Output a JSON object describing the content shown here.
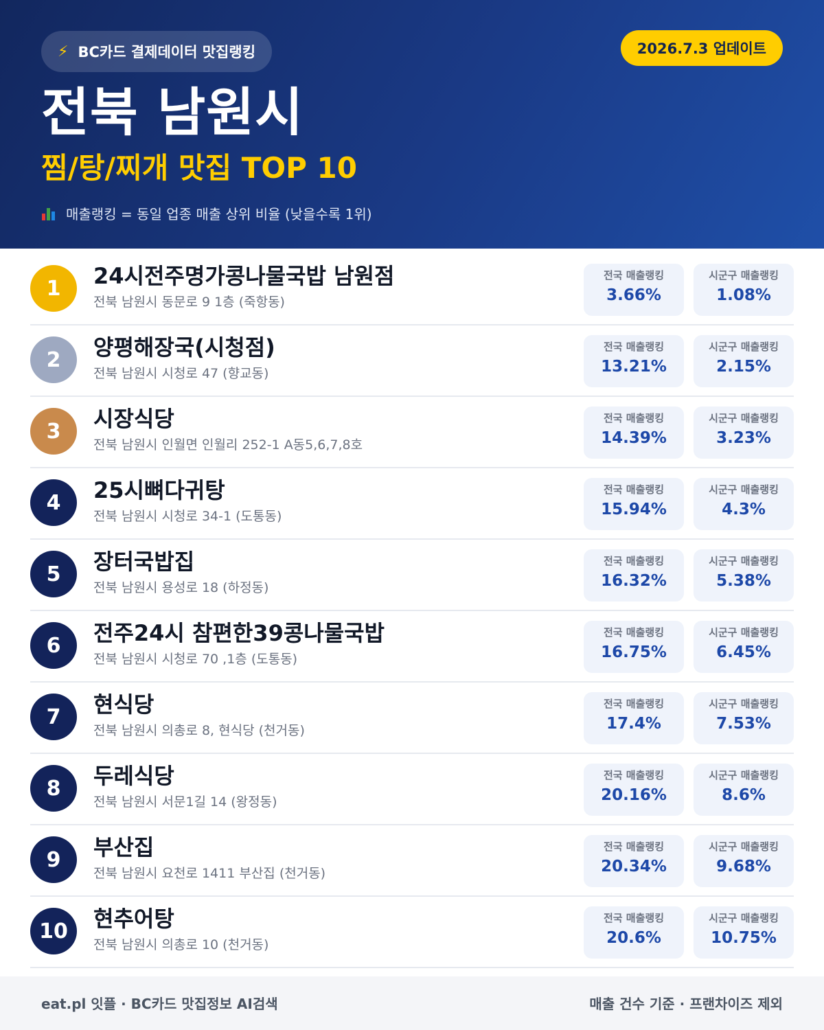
{
  "header": {
    "pill_label": "BC카드 결제데이터 맛집랭킹",
    "date_badge": "2026.7.3 업데이트",
    "title": "전북 남원시",
    "subtitle": "찜/탕/찌개 맛집 TOP 10",
    "note": "매출랭킹 = 동일 업종 매출 상위 비율 (낮을수록 1위)"
  },
  "colors": {
    "header_dark": "#12275e",
    "header_light": "#1f4fa8",
    "accent_yellow": "#ffcd00",
    "gold": "#f2b600",
    "silver": "#9ea9c1",
    "bronze": "#c98a4c",
    "navy": "#13235a",
    "value_blue": "#1d48a8"
  },
  "list": {
    "national_label": "전국 매출랭킹",
    "local_label": "시군구 매출랭킹",
    "items": [
      {
        "rank": "1",
        "name": "24시전주명가콩나물국밥 남원점",
        "address": "전북 남원시 동문로 9 1층 (죽항동)",
        "national": "3.66%",
        "local": "1.08%"
      },
      {
        "rank": "2",
        "name": "양평해장국(시청점)",
        "address": "전북 남원시 시청로 47 (향교동)",
        "national": "13.21%",
        "local": "2.15%"
      },
      {
        "rank": "3",
        "name": "시장식당",
        "address": "전북 남원시 인월면 인월리 252-1 A동5,6,7,8호",
        "national": "14.39%",
        "local": "3.23%"
      },
      {
        "rank": "4",
        "name": "25시뼈다귀탕",
        "address": "전북 남원시 시청로 34-1 (도통동)",
        "national": "15.94%",
        "local": "4.3%"
      },
      {
        "rank": "5",
        "name": "장터국밥집",
        "address": "전북 남원시 용성로 18 (하정동)",
        "national": "16.32%",
        "local": "5.38%"
      },
      {
        "rank": "6",
        "name": "전주24시 참편한39콩나물국밥",
        "address": "전북 남원시 시청로 70 ,1층 (도통동)",
        "national": "16.75%",
        "local": "6.45%"
      },
      {
        "rank": "7",
        "name": "현식당",
        "address": "전북 남원시 의총로 8, 현식당 (천거동)",
        "national": "17.4%",
        "local": "7.53%"
      },
      {
        "rank": "8",
        "name": "두레식당",
        "address": "전북 남원시 서문1길 14 (왕정동)",
        "national": "20.16%",
        "local": "8.6%"
      },
      {
        "rank": "9",
        "name": "부산집",
        "address": "전북 남원시 요천로 1411 부산집 (천거동)",
        "national": "20.34%",
        "local": "9.68%"
      },
      {
        "rank": "10",
        "name": "현추어탕",
        "address": "전북 남원시 의총로 10 (천거동)",
        "national": "20.6%",
        "local": "10.75%"
      }
    ]
  },
  "footer": {
    "left": "eat.pl 잇플 · BC카드 맛집정보 AI검색",
    "right": "매출 건수 기준 · 프랜차이즈 제외"
  }
}
